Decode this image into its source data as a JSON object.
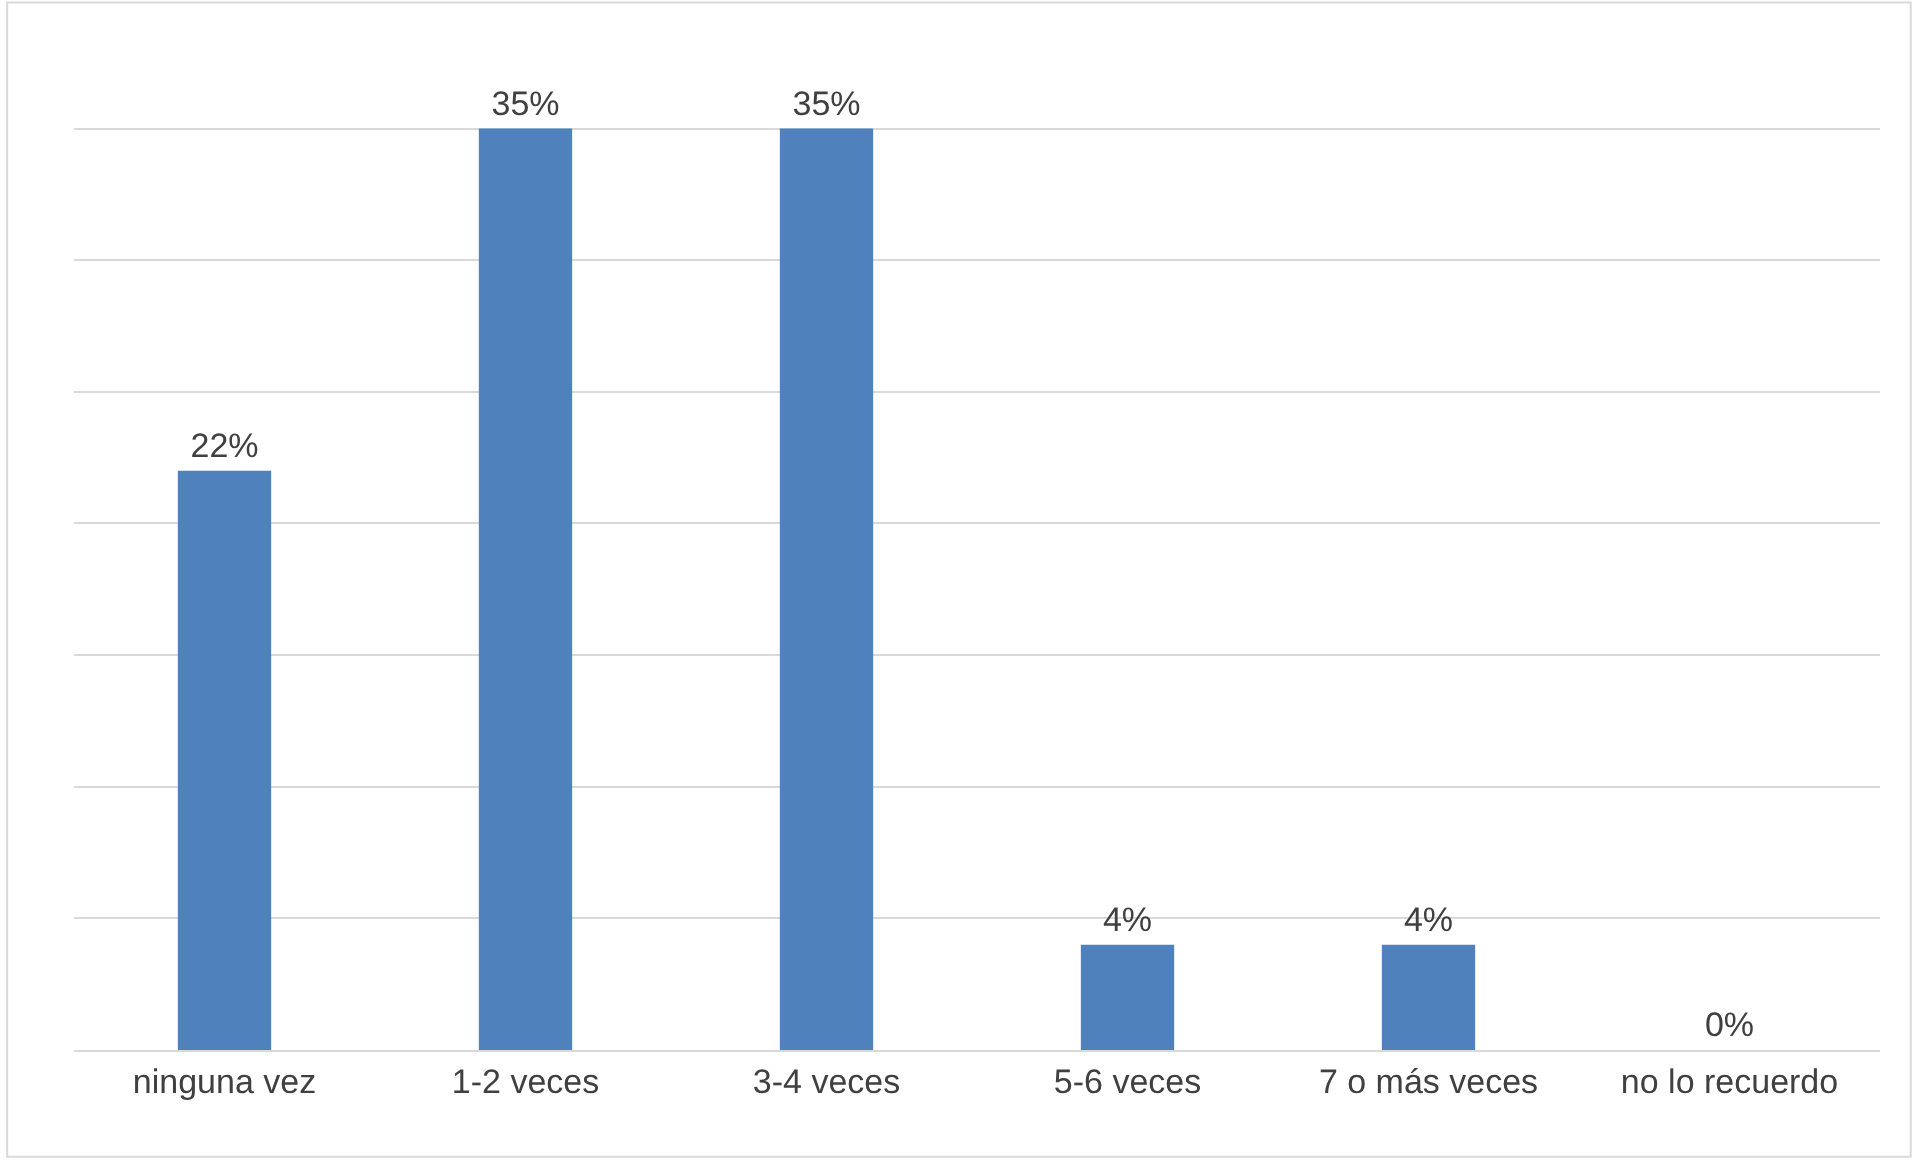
{
  "chart_data": {
    "type": "bar",
    "categories": [
      "ninguna vez",
      "1-2 veces",
      "3-4 veces",
      "5-6 veces",
      "7 o más veces",
      "no lo recuerdo"
    ],
    "values": [
      22,
      35,
      35,
      4,
      4,
      0
    ],
    "value_labels": [
      "22%",
      "35%",
      "35%",
      "4%",
      "4%",
      "0%"
    ],
    "color": "#4f81bd",
    "tick_labels": "x",
    "grid": "y"
  }
}
